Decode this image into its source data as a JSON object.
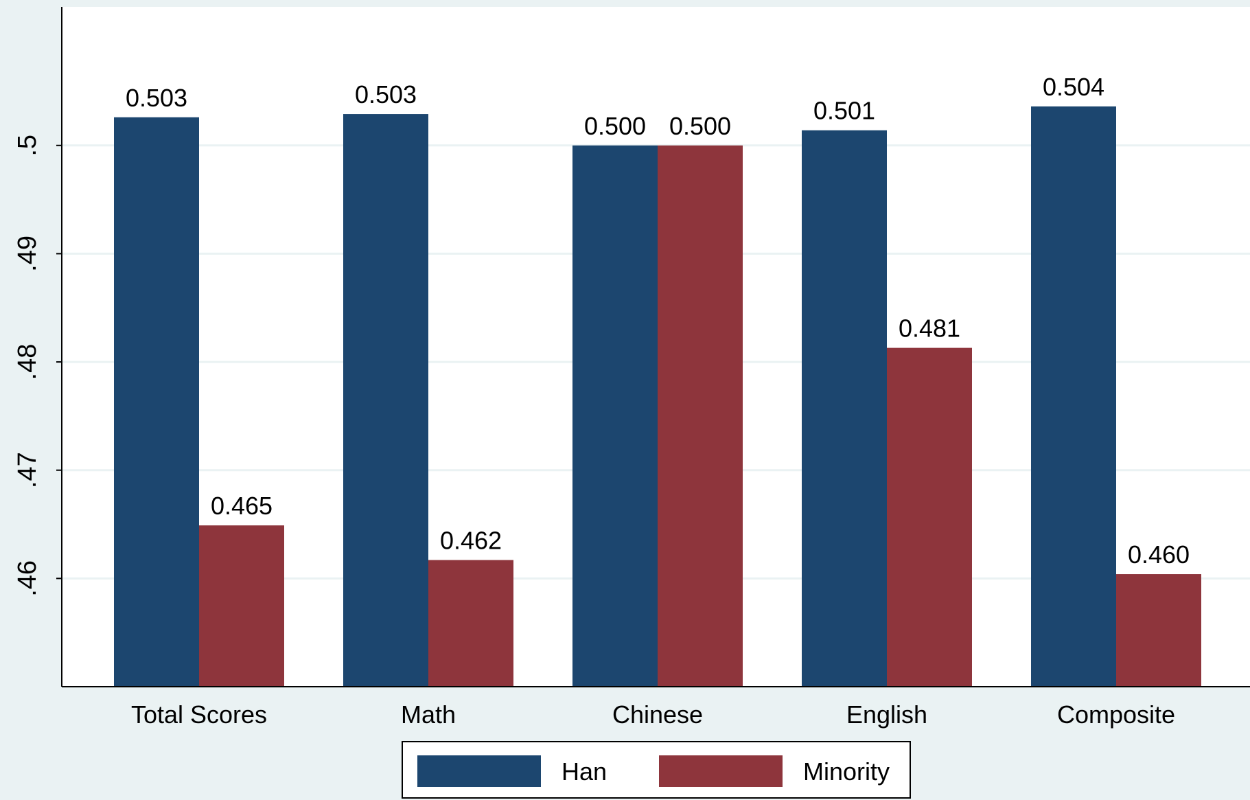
{
  "chart_data": {
    "type": "bar",
    "title": "",
    "xlabel": "",
    "ylabel": "",
    "categories": [
      "Total Scores",
      "Math",
      "Chinese",
      "English",
      "Composite"
    ],
    "series": [
      {
        "name": "Han",
        "color": "#1c466f",
        "values": [
          0.5026,
          0.5029,
          0.5,
          0.5014,
          0.5036
        ],
        "labels": [
          "0.503",
          "0.503",
          "0.500",
          "0.501",
          "0.504"
        ]
      },
      {
        "name": "Minority",
        "color": "#8e353c",
        "values": [
          0.4649,
          0.4617,
          0.5,
          0.4813,
          0.4604
        ],
        "labels": [
          "0.465",
          "0.462",
          "0.500",
          "0.481",
          "0.460"
        ]
      }
    ],
    "yticks": [
      0.46,
      0.47,
      0.48,
      0.49,
      0.5
    ],
    "ytick_labels": [
      ".46",
      ".47",
      ".48",
      ".49",
      ".5"
    ],
    "ylim": [
      0.45,
      0.5128
    ],
    "grid": true,
    "legend": {
      "position": "bottom-center",
      "entries": [
        "Han",
        "Minority"
      ]
    },
    "background_color": "#eaf2f3",
    "plot_background_color": "#ffffff",
    "gridline_color": "#eaf2f3"
  }
}
